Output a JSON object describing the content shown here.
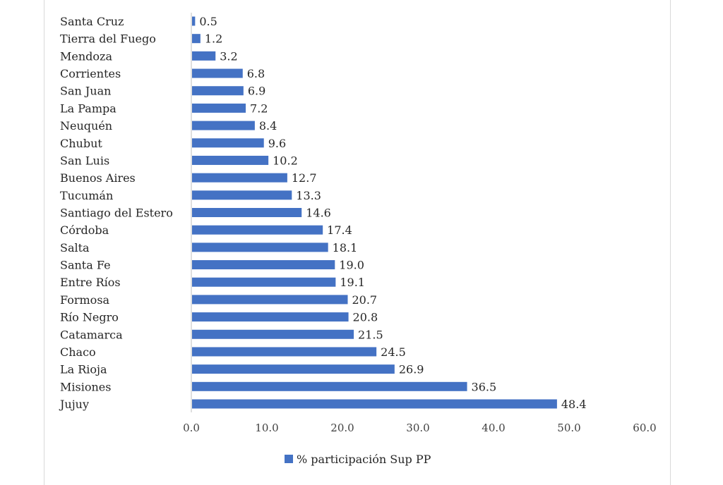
{
  "chart_data": {
    "type": "bar",
    "orientation": "horizontal",
    "categories": [
      "Santa Cruz",
      "Tierra del Fuego",
      "Mendoza",
      "Corrientes",
      "San Juan",
      "La Pampa",
      "Neuquén",
      "Chubut",
      "San Luis",
      "Buenos Aires",
      "Tucumán",
      "Santiago del Estero",
      "Córdoba",
      "Salta",
      "Santa Fe",
      "Entre Ríos",
      "Formosa",
      "Río Negro",
      "Catamarca",
      "Chaco",
      "La Rioja",
      "Misiones",
      "Jujuy"
    ],
    "series": [
      {
        "name": "% participación Sup PP",
        "values": [
          0.5,
          1.2,
          3.2,
          6.8,
          6.9,
          7.2,
          8.4,
          9.6,
          10.2,
          12.7,
          13.3,
          14.6,
          17.4,
          18.1,
          19.0,
          19.1,
          20.7,
          20.8,
          21.5,
          24.5,
          26.9,
          36.5,
          48.4
        ],
        "value_labels": [
          "0.5",
          "1.2",
          "3.2",
          "6.8",
          "6.9",
          "7.2",
          "8.4",
          "9.6",
          "10.2",
          "12.7",
          "13.3",
          "14.6",
          "17.4",
          "18.1",
          "19.0",
          "19.1",
          "20.7",
          "20.8",
          "21.5",
          "24.5",
          "26.9",
          "36.5",
          "48.4"
        ]
      }
    ],
    "xlim": [
      0,
      60
    ],
    "x_ticks": [
      "0.0",
      "10.0",
      "20.0",
      "30.0",
      "40.0",
      "50.0",
      "60.0"
    ],
    "grid": false,
    "legend_position": "bottom",
    "colors": {
      "bar": "#4472C4",
      "axis": "#bfbfbf"
    }
  }
}
